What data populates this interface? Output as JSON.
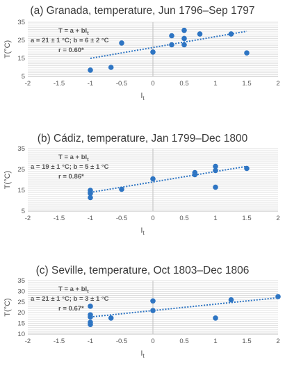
{
  "chart_data": [
    {
      "type": "scatter",
      "title": "(a) Granada, temperature, Jun 1796–Sep 1797",
      "xlabel": "I",
      "xlabel_sub": "t",
      "ylabel": "T(°C)",
      "xlim": [
        -2,
        2
      ],
      "ylim": [
        5,
        35
      ],
      "xticks": [
        -2,
        -1.5,
        -1,
        -0.5,
        0,
        0.5,
        1,
        1.5,
        2
      ],
      "xtick_labels": [
        "-2",
        "-1.5",
        "-1",
        "-0.5",
        "0",
        "0.5",
        "1",
        "1.5",
        "2"
      ],
      "yticks": [
        5,
        15,
        25,
        35
      ],
      "ytick_labels": [
        "5",
        "15",
        "25",
        "35"
      ],
      "grid": true,
      "x": [
        -1,
        -0.67,
        -0.5,
        0,
        0.3,
        0.3,
        0.5,
        0.5,
        0.5,
        0.75,
        1.25,
        1.5
      ],
      "y": [
        8.5,
        10,
        23.5,
        18.5,
        27.5,
        22.5,
        30.5,
        26,
        22.5,
        28.5,
        28.5,
        18
      ],
      "trendline": {
        "a": 21,
        "b": 6,
        "x_range": [
          -1,
          1.5
        ],
        "style": "dotted"
      },
      "annotation": {
        "line1": "T = a + bI",
        "line1_sub": "t",
        "line2": "a = 21 ± 1 °C; b = 6 ± 2 °C",
        "line3": "r = 0.60*"
      }
    },
    {
      "type": "scatter",
      "title": "(b) Cádiz, temperature, Jan 1799–Dec 1800",
      "xlabel": "I",
      "xlabel_sub": "t",
      "ylabel": "T(°C)",
      "xlim": [
        -2,
        2
      ],
      "ylim": [
        5,
        35
      ],
      "xticks": [
        -2,
        -1.5,
        -1,
        -0.5,
        0,
        0.5,
        1,
        1.5,
        2
      ],
      "xtick_labels": [
        "-2",
        "-1.5",
        "-1",
        "-0.5",
        "0",
        "0.5",
        "1",
        "1.5",
        "2"
      ],
      "yticks": [
        5,
        15,
        25,
        35
      ],
      "ytick_labels": [
        "5",
        "15",
        "25",
        "35"
      ],
      "grid": true,
      "x": [
        -1,
        -1,
        -1,
        -1,
        -0.5,
        0,
        0.67,
        0.67,
        1,
        1,
        1,
        1.5
      ],
      "y": [
        15,
        14,
        13.5,
        11.5,
        15.5,
        20.5,
        23.5,
        22.5,
        26.5,
        24.5,
        16.5,
        25.5
      ],
      "trendline": {
        "a": 19,
        "b": 5,
        "x_range": [
          -1,
          1.5
        ],
        "style": "dotted"
      },
      "annotation": {
        "line1": "T = a + bI",
        "line1_sub": "t",
        "line2": "a = 19 ± 1 °C; b = 5 ± 1 °C",
        "line3": "r = 0.86*"
      }
    },
    {
      "type": "scatter",
      "title": "(c) Seville, temperature, Oct 1803–Dec 1806",
      "xlabel": "I",
      "xlabel_sub": "t",
      "ylabel": "T(°C)",
      "xlim": [
        -2,
        2
      ],
      "ylim": [
        10,
        35
      ],
      "xticks": [
        -2,
        -1.5,
        -1,
        -0.5,
        0,
        0.5,
        1,
        1.5,
        2
      ],
      "xtick_labels": [
        "-2",
        "-1.5",
        "-1",
        "-0.5",
        "0",
        "0.5",
        "1",
        "1.5",
        "2"
      ],
      "yticks": [
        10,
        15,
        20,
        25,
        30,
        35
      ],
      "ytick_labels": [
        "10",
        "15",
        "20",
        "25",
        "30",
        "35"
      ],
      "grid": true,
      "x": [
        -1,
        -1,
        -1,
        -1,
        -1,
        -0.67,
        0,
        0,
        1,
        1.25,
        2
      ],
      "y": [
        23,
        19,
        18,
        15.5,
        14.5,
        17.5,
        25.5,
        21,
        17.5,
        26,
        27.5
      ],
      "trendline": {
        "a": 21,
        "b": 3,
        "x_range": [
          -1,
          2
        ],
        "style": "dotted"
      },
      "annotation": {
        "line1": "T = a + bI",
        "line1_sub": "t",
        "line2": "a = 21 ± 1 °C; b = 3 ± 1 °C",
        "line3": "r = 0.67*"
      }
    }
  ],
  "colors": {
    "marker": "#2e75c3",
    "trend": "#2e75c3",
    "text": "#3a3a3a"
  }
}
